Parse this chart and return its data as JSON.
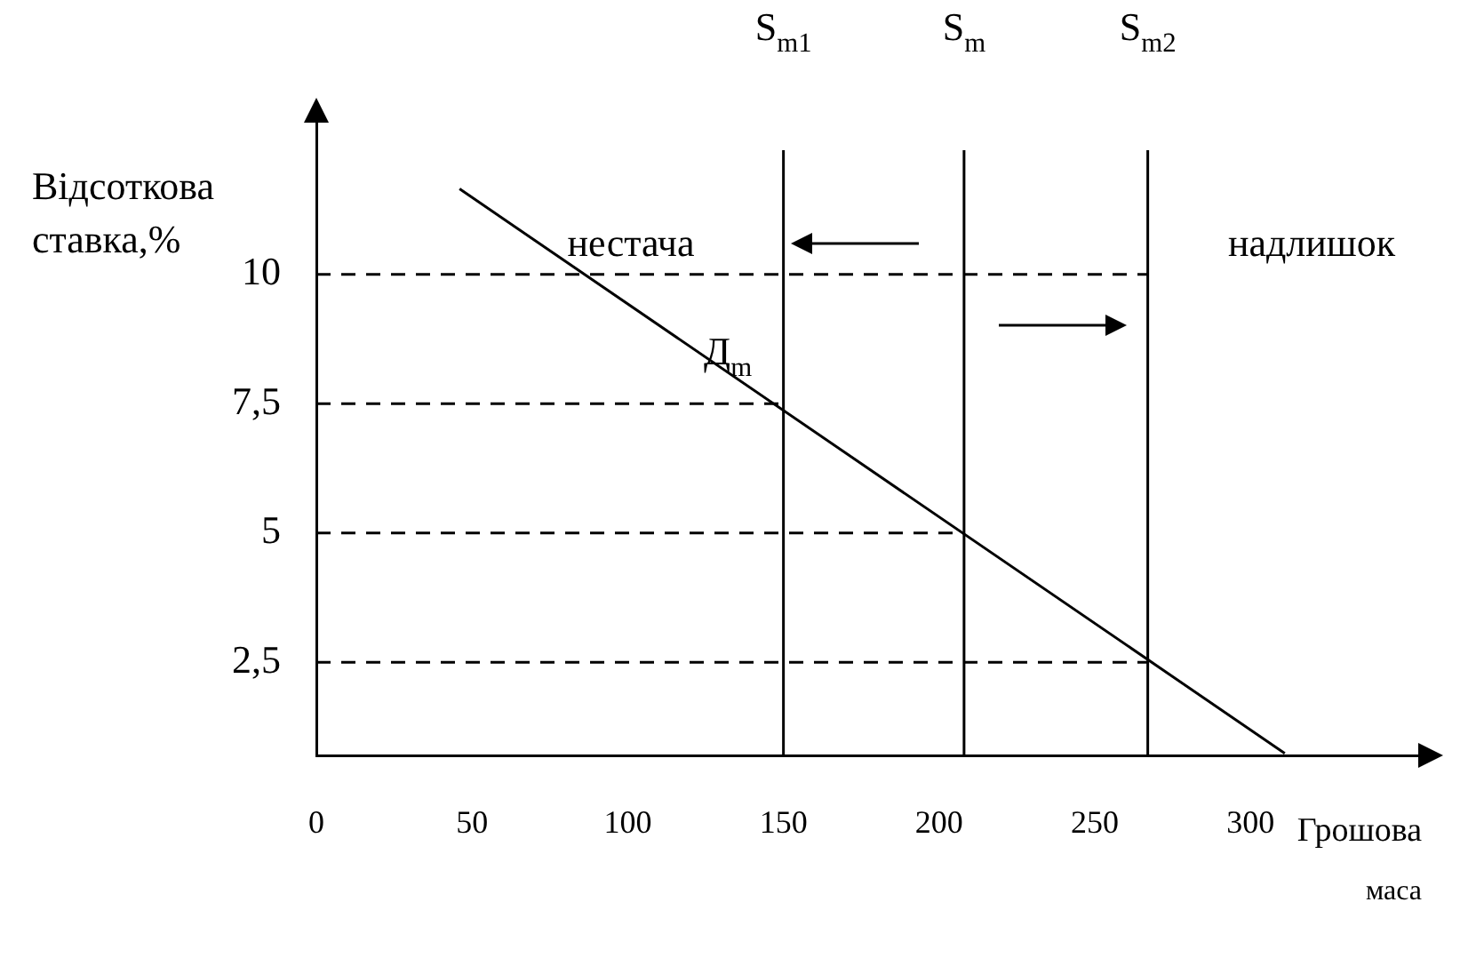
{
  "chart_data": {
    "type": "line",
    "xlabel": "Грошова маса",
    "ylabel": "Відсоткова ставка,%",
    "xlim": [
      0,
      355
    ],
    "xticks": [
      0,
      50,
      100,
      150,
      200,
      250,
      300
    ],
    "ylim": [
      0.7,
      13
    ],
    "yticks": [
      {
        "value": 2.5,
        "label": "2,5"
      },
      5,
      {
        "value": 7.5,
        "label": "7,5"
      },
      10
    ],
    "grid": false,
    "legend": false,
    "marker": "none",
    "series": [
      {
        "name": "Д$_{m}$",
        "color": "#000000",
        "x": [
          46,
          311
        ],
        "values": [
          11.65,
          0.74
        ]
      },
      {
        "name": "S$_{m1}$",
        "color": "#000000",
        "x": [
          150,
          150
        ],
        "values": [
          0.7,
          12.4
        ]
      },
      {
        "name": "S$_{m}$",
        "color": "#000000",
        "x": [
          208,
          208
        ],
        "values": [
          0.7,
          12.4
        ]
      },
      {
        "name": "S$_{m2}$",
        "color": "#000000",
        "x": [
          267,
          267
        ],
        "values": [
          0.7,
          12.4
        ]
      },
      {
        "color": "#000000",
        "line_style": "dashed",
        "x": [
          0,
          267
        ],
        "values": [
          10,
          10
        ]
      },
      {
        "color": "#000000",
        "line_style": "dashed",
        "x": [
          0,
          150
        ],
        "values": [
          7.5,
          7.5
        ]
      },
      {
        "color": "#000000",
        "line_style": "dashed",
        "x": [
          0,
          208
        ],
        "values": [
          5,
          5
        ]
      },
      {
        "color": "#000000",
        "line_style": "dashed",
        "x": [
          0,
          267
        ],
        "values": [
          2.5,
          2.5
        ]
      }
    ],
    "annotations": [
      "нестача",
      "надлишок"
    ]
  }
}
